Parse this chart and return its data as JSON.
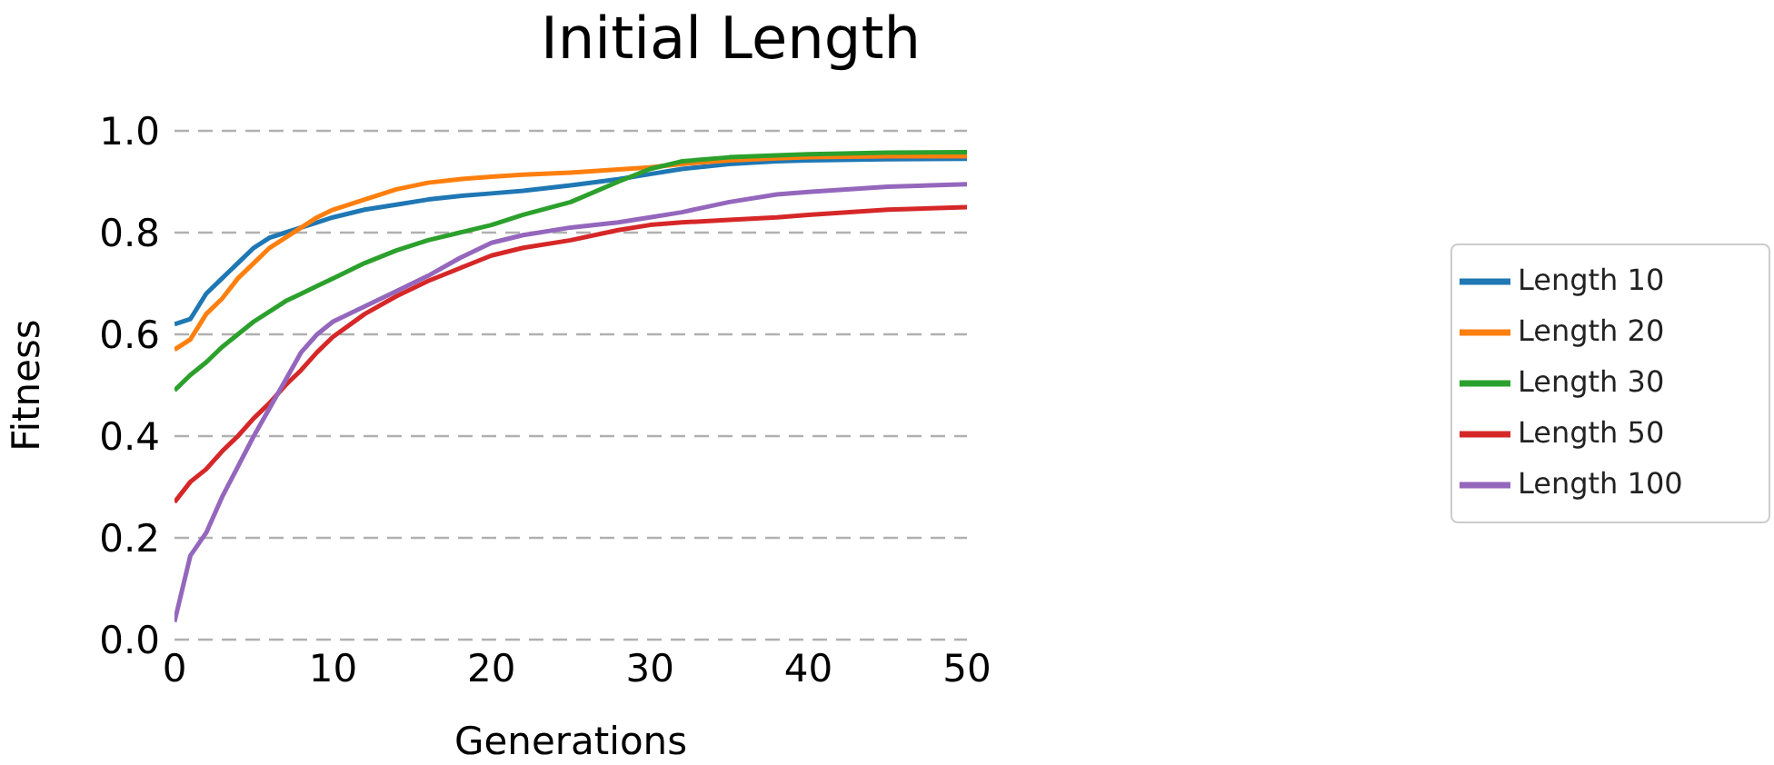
{
  "chart_data": {
    "type": "line",
    "title": "Initial Length",
    "xlabel": "Generations",
    "ylabel": "Fitness",
    "x": [
      0,
      1,
      2,
      3,
      4,
      5,
      6,
      7,
      8,
      9,
      10,
      12,
      14,
      16,
      18,
      20,
      22,
      25,
      28,
      30,
      32,
      35,
      38,
      40,
      45,
      50
    ],
    "series": [
      {
        "name": "Length 10",
        "color": "#1f77b4",
        "values": [
          0.62,
          0.63,
          0.68,
          0.71,
          0.74,
          0.77,
          0.79,
          0.8,
          0.81,
          0.82,
          0.83,
          0.845,
          0.855,
          0.865,
          0.872,
          0.877,
          0.882,
          0.893,
          0.905,
          0.915,
          0.925,
          0.935,
          0.94,
          0.942,
          0.944,
          0.945
        ]
      },
      {
        "name": "Length 20",
        "color": "#ff7f0e",
        "values": [
          0.57,
          0.59,
          0.64,
          0.67,
          0.71,
          0.74,
          0.77,
          0.79,
          0.81,
          0.83,
          0.845,
          0.865,
          0.885,
          0.898,
          0.905,
          0.91,
          0.914,
          0.918,
          0.924,
          0.928,
          0.935,
          0.942,
          0.946,
          0.948,
          0.95,
          0.95
        ]
      },
      {
        "name": "Length 30",
        "color": "#2ca02c",
        "values": [
          0.49,
          0.52,
          0.545,
          0.575,
          0.6,
          0.625,
          0.645,
          0.665,
          0.68,
          0.695,
          0.71,
          0.74,
          0.765,
          0.785,
          0.8,
          0.815,
          0.835,
          0.86,
          0.9,
          0.925,
          0.94,
          0.948,
          0.952,
          0.954,
          0.957,
          0.958
        ]
      },
      {
        "name": "Length 50",
        "color": "#d62728",
        "values": [
          0.27,
          0.31,
          0.335,
          0.37,
          0.4,
          0.435,
          0.465,
          0.5,
          0.53,
          0.565,
          0.595,
          0.64,
          0.675,
          0.705,
          0.73,
          0.755,
          0.77,
          0.785,
          0.805,
          0.815,
          0.82,
          0.825,
          0.83,
          0.835,
          0.845,
          0.85
        ]
      },
      {
        "name": "Length 100",
        "color": "#9467bd",
        "values": [
          0.035,
          0.165,
          0.21,
          0.28,
          0.34,
          0.4,
          0.455,
          0.51,
          0.565,
          0.6,
          0.625,
          0.655,
          0.685,
          0.715,
          0.75,
          0.78,
          0.795,
          0.81,
          0.82,
          0.83,
          0.84,
          0.86,
          0.875,
          0.88,
          0.89,
          0.895
        ]
      }
    ],
    "xlim": [
      0,
      50
    ],
    "xticks": [
      0,
      10,
      20,
      30,
      40,
      50
    ],
    "ylim": [
      0,
      1
    ],
    "yticks": [
      {
        "value": 0,
        "label": "0.0"
      },
      {
        "value": 0.2,
        "label": "0.2"
      },
      {
        "value": 0.4,
        "label": "0.4"
      },
      {
        "value": 0.6,
        "label": "0.6"
      },
      {
        "value": 0.8,
        "label": "0.8"
      },
      {
        "value": 1,
        "label": "1.0"
      }
    ],
    "grid": "y",
    "legend": "right",
    "marker": "none",
    "line_style": "solid"
  }
}
